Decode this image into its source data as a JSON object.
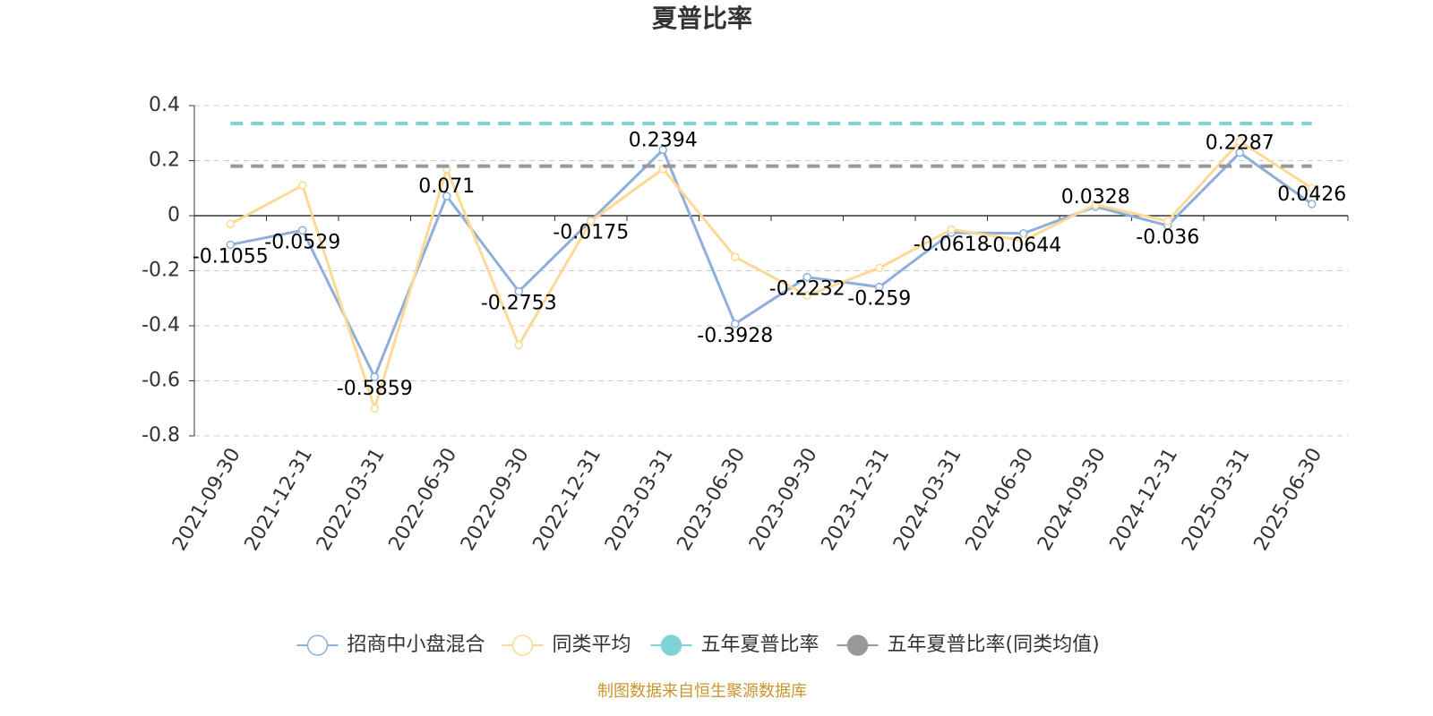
{
  "chart_data": {
    "type": "line",
    "title": "夏普比率",
    "categories": [
      "2021-09-30",
      "2021-12-31",
      "2022-03-31",
      "2022-06-30",
      "2022-09-30",
      "2022-12-31",
      "2023-03-31",
      "2023-06-30",
      "2023-09-30",
      "2023-12-31",
      "2024-03-31",
      "2024-06-30",
      "2024-09-30",
      "2024-12-31",
      "2025-03-31",
      "2025-06-30"
    ],
    "series": [
      {
        "name": "招商中小盘混合",
        "color": "#8eaedc",
        "labels": true,
        "values": [
          -0.1055,
          -0.0529,
          -0.5859,
          0.071,
          -0.2753,
          -0.0175,
          0.2394,
          -0.3928,
          -0.2232,
          -0.259,
          -0.0618,
          -0.0644,
          0.0328,
          -0.036,
          0.2287,
          0.0426
        ]
      },
      {
        "name": "同类平均",
        "color": "#fdd995",
        "values": [
          -0.03,
          0.11,
          -0.7,
          0.17,
          -0.47,
          -0.02,
          0.17,
          -0.15,
          -0.29,
          -0.19,
          -0.05,
          -0.09,
          0.04,
          -0.02,
          0.27,
          0.1
        ]
      },
      {
        "name": "五年夏普比率",
        "color": "#7fd3d6",
        "dashed": true,
        "values": [
          0.335,
          0.335,
          0.335,
          0.335,
          0.335,
          0.335,
          0.335,
          0.335,
          0.335,
          0.335,
          0.335,
          0.335,
          0.335,
          0.335,
          0.335,
          0.335
        ]
      },
      {
        "name": "五年夏普比率(同类均值)",
        "color": "#999999",
        "dashed": true,
        "values": [
          0.18,
          0.18,
          0.18,
          0.18,
          0.18,
          0.18,
          0.18,
          0.18,
          0.18,
          0.18,
          0.18,
          0.18,
          0.18,
          0.18,
          0.18,
          0.18
        ]
      }
    ],
    "ylim": [
      -0.8,
      0.4
    ],
    "yticks": [
      0.4,
      0.2,
      0,
      -0.2,
      -0.4,
      -0.6,
      -0.8
    ],
    "grid": true,
    "source": "制图数据来自恒生聚源数据库"
  }
}
